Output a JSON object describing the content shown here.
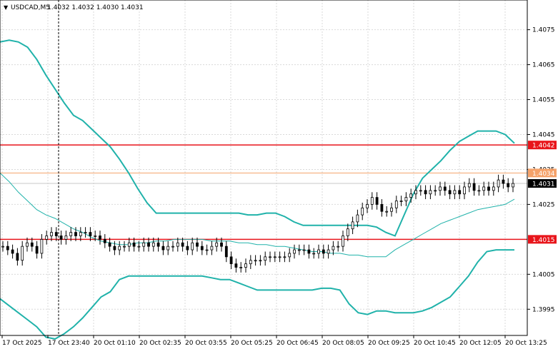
{
  "header": {
    "collapse_symbol": "▼",
    "symbol": "USDCAD,M5",
    "ohlc": "1.4032 1.4032 1.4030 1.4031"
  },
  "chart_data": {
    "type": "candlestick",
    "symbol": "USDCAD",
    "timeframe": "M5",
    "ylim": [
      1.39875,
      1.40835
    ],
    "y_ticks": [
      "1.4075",
      "1.4065",
      "1.4055",
      "1.4045",
      "1.4035",
      "1.4025",
      "1.4005",
      "1.3995"
    ],
    "x_ticks": [
      "17 Oct 2025",
      "17 Oct 23:40",
      "20 Oct 01:10",
      "20 Oct 02:35",
      "20 Oct 03:55",
      "20 Oct 05:25",
      "20 Oct 06:45",
      "20 Oct 08:05",
      "20 Oct 09:25",
      "20 Oct 10:45",
      "20 Oct 12:05",
      "20 Oct 13:25"
    ],
    "current_price": "1.4031",
    "horizontal_levels": [
      {
        "label": "1.4042",
        "value": 1.4042,
        "color": "#e8151b"
      },
      {
        "label": "1.4034",
        "value": 1.4034,
        "color": "#f5a26a"
      },
      {
        "label": "1.4015",
        "value": 1.4015,
        "color": "#e8151b"
      }
    ],
    "bollinger_upper": [
      1.40715,
      1.4072,
      1.40715,
      1.407,
      1.40665,
      1.4062,
      1.4058,
      1.4054,
      1.40505,
      1.4049,
      1.40465,
      1.4044,
      1.40415,
      1.4038,
      1.4034,
      1.40295,
      1.40255,
      1.40225,
      1.40225,
      1.40225,
      1.40225,
      1.40225,
      1.40225,
      1.40225,
      1.40225,
      1.40225,
      1.40225,
      1.4022,
      1.4022,
      1.40225,
      1.40225,
      1.40215,
      1.402,
      1.4019,
      1.4019,
      1.4019,
      1.4019,
      1.4019,
      1.4019,
      1.4019,
      1.4019,
      1.40185,
      1.4017,
      1.4016,
      1.4022,
      1.4028,
      1.40325,
      1.4035,
      1.40375,
      1.40405,
      1.4043,
      1.40445,
      1.4046,
      1.4046,
      1.4046,
      1.4045,
      1.40425
    ],
    "bollinger_middle": [
      1.4034,
      1.40315,
      1.40285,
      1.4026,
      1.40235,
      1.4022,
      1.4021,
      1.40195,
      1.4018,
      1.4017,
      1.40155,
      1.40145,
      1.4014,
      1.40135,
      1.40135,
      1.4014,
      1.4014,
      1.40145,
      1.40145,
      1.4015,
      1.4015,
      1.4015,
      1.4015,
      1.40145,
      1.40145,
      1.40145,
      1.4014,
      1.4014,
      1.40135,
      1.40135,
      1.4013,
      1.4013,
      1.40125,
      1.4012,
      1.40115,
      1.40115,
      1.4011,
      1.4011,
      1.40105,
      1.40105,
      1.401,
      1.401,
      1.401,
      1.4012,
      1.40135,
      1.4015,
      1.40165,
      1.4018,
      1.40195,
      1.40205,
      1.40215,
      1.40225,
      1.40235,
      1.4024,
      1.40245,
      1.4025,
      1.40265
    ],
    "bollinger_lower": [
      1.3998,
      1.3996,
      1.3994,
      1.3992,
      1.399,
      1.3987,
      1.39865,
      1.3988,
      1.399,
      1.39925,
      1.39955,
      1.39985,
      1.4,
      1.40035,
      1.40045,
      1.40045,
      1.40045,
      1.40045,
      1.40045,
      1.40045,
      1.40045,
      1.40045,
      1.40045,
      1.4004,
      1.40035,
      1.40035,
      1.40025,
      1.40015,
      1.40005,
      1.40005,
      1.40005,
      1.40005,
      1.40005,
      1.40005,
      1.40005,
      1.4001,
      1.4001,
      1.40005,
      1.39965,
      1.3994,
      1.39935,
      1.39945,
      1.39945,
      1.3994,
      1.3994,
      1.3994,
      1.39945,
      1.39955,
      1.3997,
      1.39985,
      1.40015,
      1.40045,
      1.40085,
      1.40115,
      1.4012,
      1.4012,
      1.4012
    ],
    "close_series": [
      1.4013,
      1.4012,
      1.4011,
      1.4009,
      1.4013,
      1.4014,
      1.4013,
      1.4011,
      1.4015,
      1.4016,
      1.4017,
      1.4016,
      1.4015,
      1.4016,
      1.4017,
      1.4016,
      1.4017,
      1.4017,
      1.4016,
      1.4016,
      1.4015,
      1.4014,
      1.4013,
      1.4012,
      1.4013,
      1.4013,
      1.4014,
      1.4013,
      1.4013,
      1.4014,
      1.4013,
      1.4014,
      1.4013,
      1.4012,
      1.4013,
      1.4013,
      1.4014,
      1.4013,
      1.4012,
      1.4014,
      1.4013,
      1.4012,
      1.4012,
      1.4013,
      1.4014,
      1.4013,
      1.401,
      1.4008,
      1.4007,
      1.4007,
      1.4008,
      1.4009,
      1.4009,
      1.4009,
      1.401,
      1.401,
      1.401,
      1.401,
      1.401,
      1.4011,
      1.4012,
      1.4012,
      1.4012,
      1.4011,
      1.4011,
      1.4012,
      1.4011,
      1.4012,
      1.4013,
      1.4013,
      1.4016,
      1.4018,
      1.402,
      1.4022,
      1.4024,
      1.4025,
      1.4027,
      1.4025,
      1.4023,
      1.4023,
      1.4024,
      1.4026,
      1.4026,
      1.4027,
      1.4028,
      1.4029,
      1.4029,
      1.4028,
      1.4029,
      1.4029,
      1.403,
      1.4029,
      1.4028,
      1.4029,
      1.4028,
      1.403,
      1.4031,
      1.4029,
      1.4029,
      1.403,
      1.4029,
      1.403,
      1.4032,
      1.4031,
      1.403,
      1.4031
    ]
  }
}
